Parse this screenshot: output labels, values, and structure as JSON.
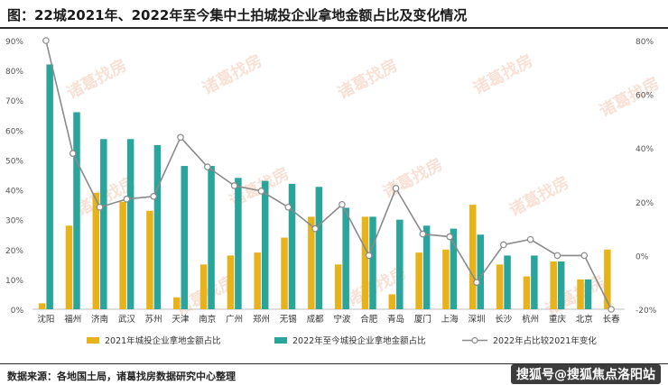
{
  "header": {
    "title": "图：22城2021年、2022年至今集中土拍城投企业拿地金额占比及变化情况"
  },
  "footer": {
    "source": "数据来源：各地国土局，诸葛找房数据研究中心整理",
    "credit": "搜狐号@搜狐焦点洛阳站"
  },
  "watermark": "诸葛找房",
  "colors": {
    "series2021": "#e8b21a",
    "series2022": "#2aa59b",
    "line": "#8a8a8a",
    "marker_fill": "#ffffff"
  },
  "chart_data": {
    "type": "bar",
    "title": "",
    "categories": [
      "沈阳",
      "福州",
      "济南",
      "武汉",
      "苏州",
      "天津",
      "南京",
      "广州",
      "郑州",
      "无锡",
      "成都",
      "宁波",
      "合肥",
      "青岛",
      "厦门",
      "上海",
      "深圳",
      "长沙",
      "杭州",
      "重庆",
      "北京",
      "长春"
    ],
    "series": [
      {
        "name": "2021年城投企业拿地金额占比",
        "type": "bar",
        "axis": "left",
        "values": [
          2,
          28,
          39,
          36,
          33,
          4,
          15,
          18,
          19,
          24,
          31,
          15,
          31,
          5,
          19,
          20,
          35,
          15,
          11,
          16,
          10,
          20
        ]
      },
      {
        "name": "2022年至今城投企业拿地金额占比",
        "type": "bar",
        "axis": "left",
        "values": [
          82,
          66,
          57,
          57,
          55,
          48,
          48,
          44,
          43,
          42,
          41,
          34,
          31,
          30,
          28,
          27,
          25,
          18,
          18,
          16,
          10,
          0
        ]
      },
      {
        "name": "2022年占比较2021年变化",
        "type": "line",
        "axis": "right",
        "values": [
          80,
          38,
          18,
          21,
          22,
          44,
          33,
          26,
          24,
          18,
          10,
          19,
          0,
          25,
          8,
          7,
          -10,
          4,
          6,
          0,
          0,
          -20
        ]
      }
    ],
    "yleft": {
      "min": 0,
      "max": 90,
      "step": 10,
      "tick_suffix": "%"
    },
    "yright": {
      "min": -20,
      "max": 80,
      "step": 20,
      "tick_suffix": "%"
    },
    "grid": false,
    "legend_position": "bottom"
  }
}
